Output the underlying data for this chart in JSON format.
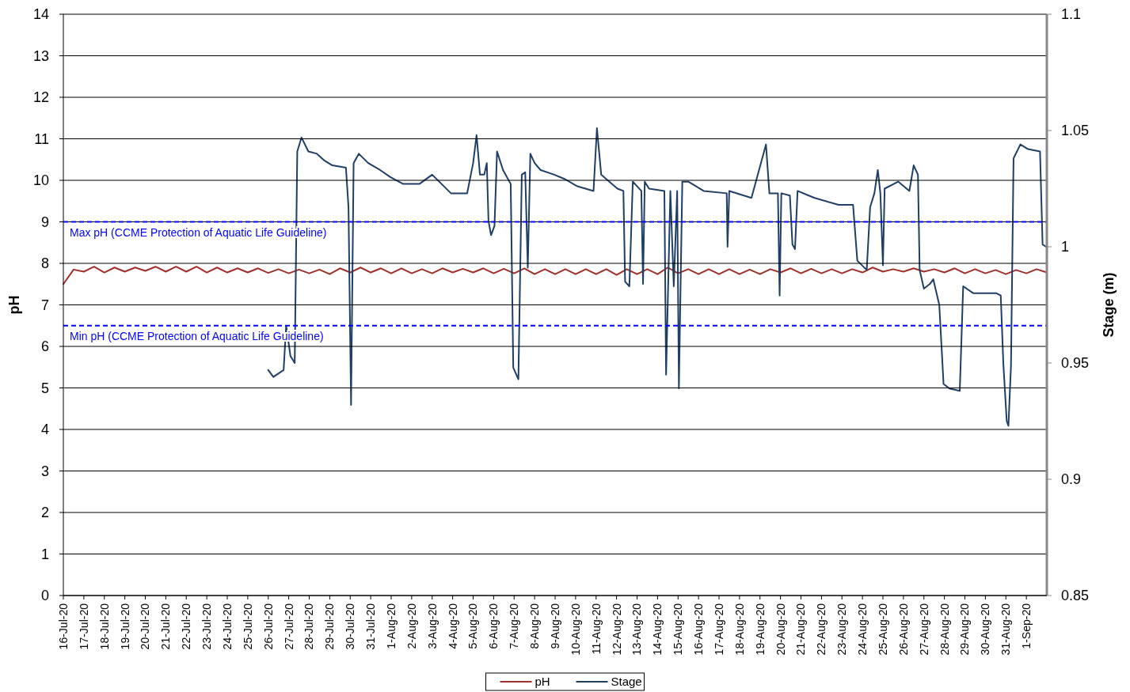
{
  "chart_data": {
    "type": "line",
    "ylabel": "pH",
    "y2label": "Stage (m)",
    "xlim": [
      "--07-16",
      "--09-02"
    ],
    "xticks": [
      {
        "value": "--07-16",
        "label": "16-Jul-20"
      },
      {
        "value": "--07-17",
        "label": "17-Jul-20"
      },
      {
        "value": "--07-18",
        "label": "18-Jul-20"
      },
      {
        "value": "--07-19",
        "label": "19-Jul-20"
      },
      {
        "value": "--07-20",
        "label": "20-Jul-20"
      },
      {
        "value": "--07-21",
        "label": "21-Jul-20"
      },
      {
        "value": "--07-22",
        "label": "22-Jul-20"
      },
      {
        "value": "--07-23",
        "label": "23-Jul-20"
      },
      {
        "value": "--07-24",
        "label": "24-Jul-20"
      },
      {
        "value": "--07-25",
        "label": "25-Jul-20"
      },
      {
        "value": "--07-26",
        "label": "26-Jul-20"
      },
      {
        "value": "--07-27",
        "label": "27-Jul-20"
      },
      {
        "value": "--07-28",
        "label": "28-Jul-20"
      },
      {
        "value": "--07-29",
        "label": "29-Jul-20"
      },
      {
        "value": "--07-30",
        "label": "30-Jul-20"
      },
      {
        "value": "--07-31",
        "label": "31-Jul-20"
      },
      {
        "value": "--08-01",
        "label": "1-Aug-20"
      },
      {
        "value": "--08-02",
        "label": "2-Aug-20"
      },
      {
        "value": "--08-03",
        "label": "3-Aug-20"
      },
      {
        "value": "--08-04",
        "label": "4-Aug-20"
      },
      {
        "value": "--08-05",
        "label": "5-Aug-20"
      },
      {
        "value": "--08-06",
        "label": "6-Aug-20"
      },
      {
        "value": "--08-07",
        "label": "7-Aug-20"
      },
      {
        "value": "--08-08",
        "label": "8-Aug-20"
      },
      {
        "value": "--08-09",
        "label": "9-Aug-20"
      },
      {
        "value": "--08-10",
        "label": "10-Aug-20"
      },
      {
        "value": "--08-11",
        "label": "11-Aug-20"
      },
      {
        "value": "--08-12",
        "label": "12-Aug-20"
      },
      {
        "value": "--08-13",
        "label": "13-Aug-20"
      },
      {
        "value": "--08-14",
        "label": "14-Aug-20"
      },
      {
        "value": "--08-15",
        "label": "15-Aug-20"
      },
      {
        "value": "--08-16",
        "label": "16-Aug-20"
      },
      {
        "value": "--08-17",
        "label": "17-Aug-20"
      },
      {
        "value": "--08-18",
        "label": "18-Aug-20"
      },
      {
        "value": "--08-19",
        "label": "19-Aug-20"
      },
      {
        "value": "--08-20",
        "label": "20-Aug-20"
      },
      {
        "value": "--08-21",
        "label": "21-Aug-20"
      },
      {
        "value": "--08-22",
        "label": "22-Aug-20"
      },
      {
        "value": "--08-23",
        "label": "23-Aug-20"
      },
      {
        "value": "--08-24",
        "label": "24-Aug-20"
      },
      {
        "value": "--08-25",
        "label": "25-Aug-20"
      },
      {
        "value": "--08-26",
        "label": "26-Aug-20"
      },
      {
        "value": "--08-27",
        "label": "27-Aug-20"
      },
      {
        "value": "--08-28",
        "label": "28-Aug-20"
      },
      {
        "value": "--08-29",
        "label": "29-Aug-20"
      },
      {
        "value": "--08-30",
        "label": "30-Aug-20"
      },
      {
        "value": "--08-31",
        "label": "31-Aug-20"
      },
      {
        "value": "--09-01",
        "label": "1-Sep-20"
      }
    ],
    "ylim": [
      0,
      14
    ],
    "yticks": [
      0,
      1,
      2,
      3,
      4,
      5,
      6,
      7,
      8,
      9,
      10,
      11,
      12,
      13,
      14
    ],
    "y2lim": [
      0.85,
      1.1
    ],
    "y2ticks": [
      0.85,
      0.9,
      0.95,
      1,
      1.05,
      1.1
    ],
    "grid": "y",
    "legend": "bottom",
    "marker": "none",
    "line_style": "solid",
    "ref_lines": [
      {
        "axis": "y",
        "value": 9,
        "label": "Max pH (CCME Protection of Aquatic Life Guideline)",
        "color": "#0000ff",
        "line_style": "dashed"
      },
      {
        "axis": "y",
        "value": 6.5,
        "label": "Min pH (CCME Protection of Aquatic Life Guideline)",
        "color": "#0000ff",
        "line_style": "dashed"
      }
    ],
    "series": [
      {
        "name": "pH",
        "color": "#a0302a",
        "x": [
          "--07-16T00:00",
          "--07-16T12:00",
          "--07-17T00:00",
          "--07-17T12:00",
          "--07-18T00:00",
          "--07-18T12:00",
          "--07-19T00:00",
          "--07-19T12:00",
          "--07-20T00:00",
          "--07-20T12:00",
          "--07-21T00:00",
          "--07-21T12:00",
          "--07-22T00:00",
          "--07-22T12:00",
          "--07-23T00:00",
          "--07-23T12:00",
          "--07-24T00:00",
          "--07-24T12:00",
          "--07-25T00:00",
          "--07-25T12:00",
          "--07-26T00:00",
          "--07-26T12:00",
          "--07-27T00:00",
          "--07-27T12:00",
          "--07-28T00:00",
          "--07-28T12:00",
          "--07-29T00:00",
          "--07-29T12:00",
          "--07-30T00:00",
          "--07-30T12:00",
          "--07-31T00:00",
          "--07-31T12:00",
          "--08-01T00:00",
          "--08-01T12:00",
          "--08-02T00:00",
          "--08-02T12:00",
          "--08-03T00:00",
          "--08-03T12:00",
          "--08-04T00:00",
          "--08-04T12:00",
          "--08-05T00:00",
          "--08-05T12:00",
          "--08-06T00:00",
          "--08-06T12:00",
          "--08-07T00:00",
          "--08-07T12:00",
          "--08-08T00:00",
          "--08-08T12:00",
          "--08-09T00:00",
          "--08-09T12:00",
          "--08-10T00:00",
          "--08-10T12:00",
          "--08-11T00:00",
          "--08-11T12:00",
          "--08-12T00:00",
          "--08-12T12:00",
          "--08-13T00:00",
          "--08-13T12:00",
          "--08-14T00:00",
          "--08-14T12:00",
          "--08-15T00:00",
          "--08-15T12:00",
          "--08-16T00:00",
          "--08-16T12:00",
          "--08-17T00:00",
          "--08-17T12:00",
          "--08-18T00:00",
          "--08-18T12:00",
          "--08-19T00:00",
          "--08-19T12:00",
          "--08-20T00:00",
          "--08-20T12:00",
          "--08-21T00:00",
          "--08-21T12:00",
          "--08-22T00:00",
          "--08-22T12:00",
          "--08-23T00:00",
          "--08-23T12:00",
          "--08-24T00:00",
          "--08-24T12:00",
          "--08-25T00:00",
          "--08-25T12:00",
          "--08-26T00:00",
          "--08-26T12:00",
          "--08-27T00:00",
          "--08-27T12:00",
          "--08-28T00:00",
          "--08-28T12:00",
          "--08-29T00:00",
          "--08-29T12:00",
          "--08-30T00:00",
          "--08-30T12:00",
          "--08-31T00:00",
          "--08-31T12:00",
          "--09-01T00:00",
          "--09-01T12:00",
          "--09-02T00:00"
        ],
        "values": [
          7.5,
          7.85,
          7.8,
          7.92,
          7.78,
          7.9,
          7.8,
          7.9,
          7.82,
          7.92,
          7.8,
          7.92,
          7.8,
          7.92,
          7.78,
          7.9,
          7.78,
          7.88,
          7.78,
          7.88,
          7.77,
          7.86,
          7.76,
          7.85,
          7.76,
          7.85,
          7.74,
          7.88,
          7.78,
          7.9,
          7.78,
          7.88,
          7.76,
          7.88,
          7.76,
          7.86,
          7.76,
          7.88,
          7.78,
          7.87,
          7.78,
          7.88,
          7.76,
          7.87,
          7.76,
          7.88,
          7.74,
          7.86,
          7.74,
          7.86,
          7.74,
          7.86,
          7.74,
          7.86,
          7.72,
          7.86,
          7.74,
          7.86,
          7.74,
          7.9,
          7.76,
          7.86,
          7.74,
          7.86,
          7.74,
          7.86,
          7.74,
          7.85,
          7.74,
          7.86,
          7.78,
          7.88,
          7.76,
          7.87,
          7.76,
          7.86,
          7.76,
          7.86,
          7.78,
          7.9,
          7.8,
          7.86,
          7.8,
          7.88,
          7.8,
          7.86,
          7.78,
          7.88,
          7.76,
          7.86,
          7.76,
          7.84,
          7.74,
          7.84,
          7.76,
          7.86,
          7.78
        ]
      },
      {
        "name": "Stage",
        "color": "#1f3f66",
        "axis": "y2",
        "x": [
          "--07-26T00:00",
          "--07-26T06:00",
          "--07-26T18:00",
          "--07-26T21:00",
          "--07-27T02:00",
          "--07-27T07:00",
          "--07-27T10:00",
          "--07-27T15:00",
          "--07-27T23:00",
          "--07-28T09:00",
          "--07-28T18:00",
          "--07-29T03:00",
          "--07-29T19:00",
          "--07-29T22:00",
          "--07-30T01:00",
          "--07-30T04:00",
          "--07-30T10:00",
          "--07-30T21:00",
          "--07-31T11:00",
          "--07-31T23:00",
          "--08-01T14:00",
          "--08-02T09:00",
          "--08-03T00:00",
          "--08-03T22:00",
          "--08-04T17:00",
          "--08-05T00:00",
          "--08-05T04:00",
          "--08-05T08:00",
          "--08-05T13:00",
          "--08-05T16:00",
          "--08-05T18:00",
          "--08-05T21:00",
          "--08-06T01:00",
          "--08-06T04:00",
          "--08-06T11:00",
          "--08-06T20:00",
          "--08-06T23:00",
          "--08-07T05:00",
          "--08-07T09:00",
          "--08-07T13:00",
          "--08-07T16:00",
          "--08-07T19:00",
          "--08-08T00:00",
          "--08-08T07:00",
          "--08-08T23:00",
          "--08-09T12:00",
          "--08-10T02:00",
          "--08-10T21:00",
          "--08-11T01:00",
          "--08-11T06:00",
          "--08-12T01:00",
          "--08-12T08:00",
          "--08-12T10:00",
          "--08-12T15:00",
          "--08-12T19:00",
          "--08-13T05:00",
          "--08-13T07:00",
          "--08-13T09:00",
          "--08-13T14:00",
          "--08-14T08:00",
          "--08-14T10:00",
          "--08-14T15:00",
          "--08-14T19:00",
          "--08-14T23:00",
          "--08-15T01:00",
          "--08-15T05:00",
          "--08-15T12:00",
          "--08-16T06:00",
          "--08-17T09:00",
          "--08-17T10:00",
          "--08-17T12:00",
          "--08-18T14:00",
          "--08-19T07:00",
          "--08-19T11:00",
          "--08-19T21:00",
          "--08-19T23:00",
          "--08-20T01:00",
          "--08-20T11:00",
          "--08-20T14:00",
          "--08-20T17:00",
          "--08-20T20:00",
          "--08-21T16:00",
          "--08-22T20:00",
          "--08-23T13:00",
          "--08-23T18:00",
          "--08-24T05:00",
          "--08-24T09:00",
          "--08-24T14:00",
          "--08-24T18:00",
          "--08-24T21:00",
          "--08-25T00:00",
          "--08-25T02:00",
          "--08-25T18:00",
          "--08-26T07:00",
          "--08-26T12:00",
          "--08-26T17:00",
          "--08-26T19:00",
          "--08-27T00:00",
          "--08-27T07:00",
          "--08-27T11:00",
          "--08-27T18:00",
          "--08-27T23:00",
          "--08-28T06:00",
          "--08-28T18:00",
          "--08-28T22:00",
          "--08-29T10:00",
          "--08-30T13:00",
          "--08-30T18:00",
          "--08-30T21:00",
          "--08-31T01:00",
          "--08-31T03:00",
          "--08-31T06:00",
          "--08-31T09:00",
          "--08-31T17:00",
          "--09-01T02:00",
          "--09-01T16:00",
          "--09-01T19:00",
          "--09-01T23:00"
        ],
        "values": [
          0.947,
          0.944,
          0.947,
          0.966,
          0.953,
          0.95,
          1.041,
          1.047,
          1.041,
          1.04,
          1.037,
          1.035,
          1.034,
          1.017,
          0.932,
          1.036,
          1.04,
          1.036,
          1.033,
          1.03,
          1.027,
          1.027,
          1.031,
          1.023,
          1.023,
          1.036,
          1.048,
          1.031,
          1.031,
          1.036,
          1.011,
          1.005,
          1.009,
          1.041,
          1.033,
          1.027,
          0.948,
          0.943,
          1.031,
          1.032,
          0.991,
          1.04,
          1.036,
          1.033,
          1.031,
          1.029,
          1.026,
          1.024,
          1.051,
          1.031,
          1.025,
          1.024,
          0.985,
          0.983,
          1.028,
          1.024,
          0.984,
          1.028,
          1.025,
          1.024,
          0.945,
          1.024,
          0.983,
          1.024,
          0.939,
          1.028,
          1.028,
          1.024,
          1.023,
          1.0,
          1.024,
          1.021,
          1.044,
          1.023,
          1.023,
          0.979,
          1.023,
          1.022,
          1.001,
          0.999,
          1.024,
          1.021,
          1.018,
          1.018,
          0.994,
          0.99,
          1.017,
          1.023,
          1.033,
          1.023,
          0.992,
          1.025,
          1.028,
          1.024,
          1.035,
          1.031,
          0.99,
          0.982,
          0.984,
          0.986,
          0.975,
          0.941,
          0.939,
          0.938,
          0.983,
          0.98,
          0.98,
          0.979,
          0.95,
          0.925,
          0.923,
          0.949,
          1.038,
          1.044,
          1.042,
          1.041,
          1.001,
          1.0
        ]
      }
    ]
  }
}
